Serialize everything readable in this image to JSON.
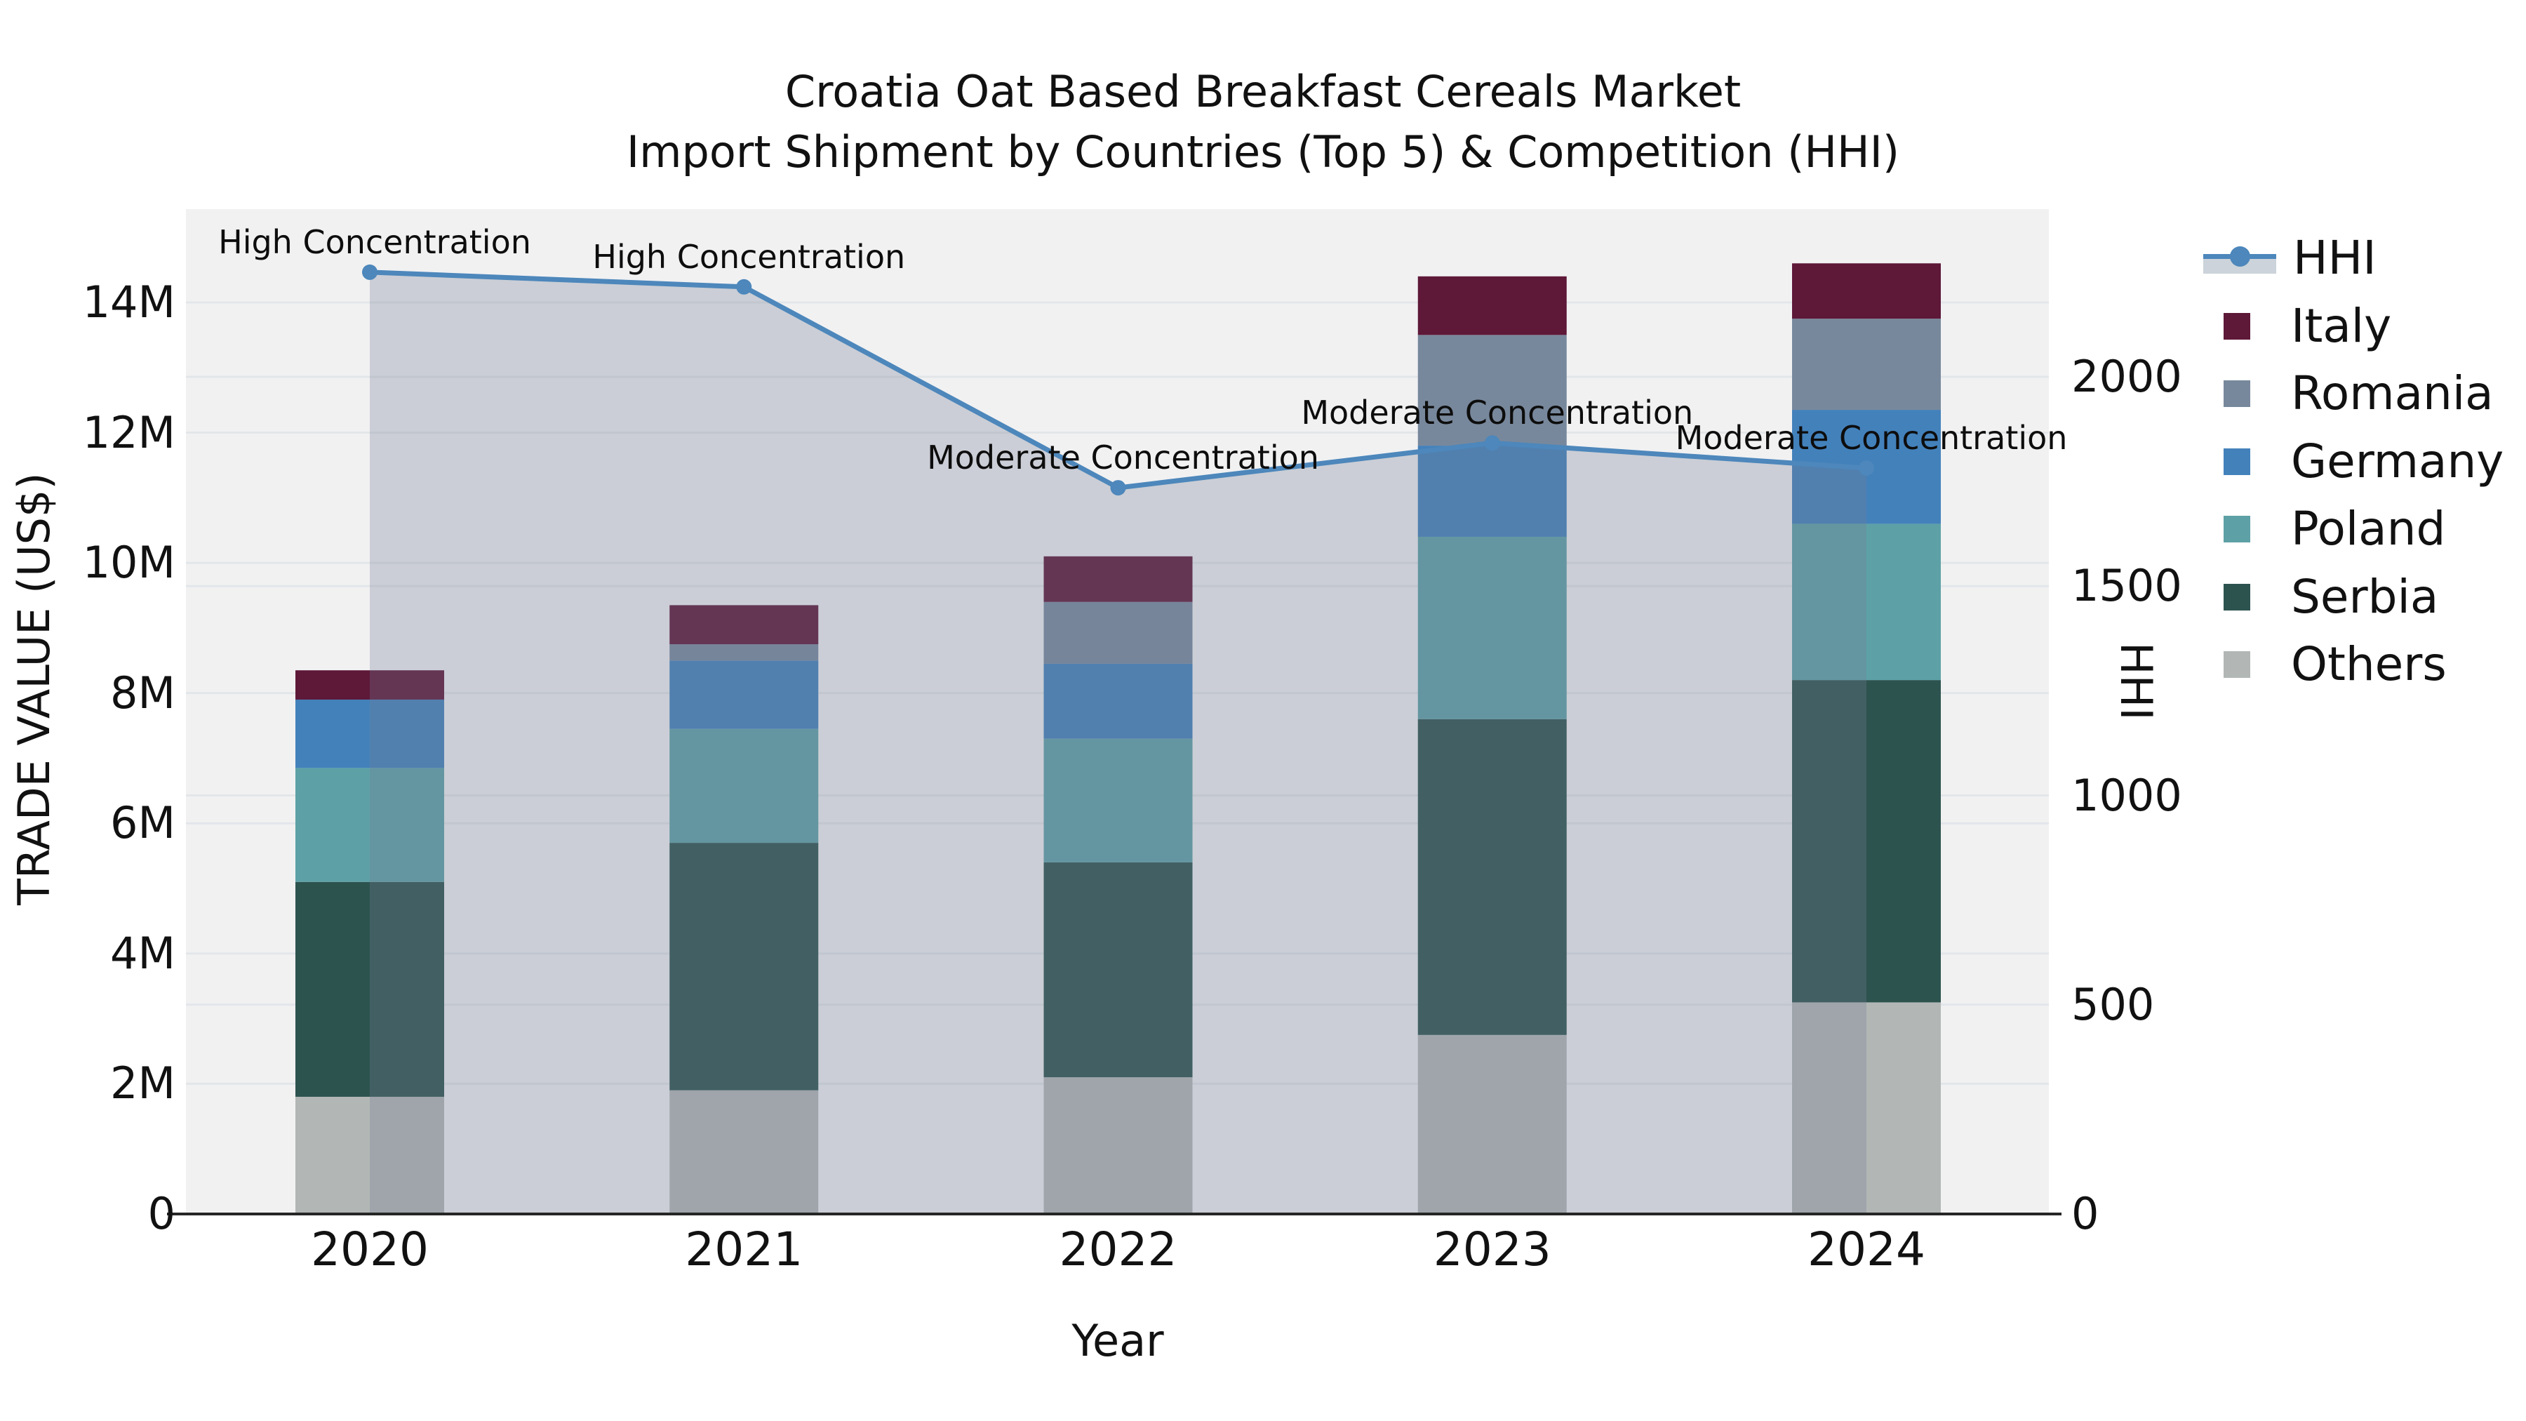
{
  "title": {
    "line1": "Croatia Oat Based Breakfast Cereals Market",
    "line2": "Import Shipment by Countries (Top 5) & Competition (HHI)"
  },
  "axes": {
    "x_label": "Year",
    "y_left_label": "TRADE VALUE (US$)",
    "y_right_label": "HHI",
    "y_left_tick_values": [
      0,
      2,
      4,
      6,
      8,
      10,
      12,
      14
    ],
    "y_left_tick_labels": [
      "0",
      "2M",
      "4M",
      "6M",
      "8M",
      "10M",
      "12M",
      "14M"
    ],
    "y_right_tick_values": [
      0,
      500,
      1000,
      1500,
      2000
    ],
    "y_right_tick_labels": [
      "0",
      "500",
      "1000",
      "1500",
      "2000"
    ]
  },
  "colors": {
    "plot_bg": "#f1f1f2",
    "grid": "#e3e6e9",
    "axis_line": "#262626",
    "text": "#111111",
    "hhi_line": "#4d87bb",
    "area_fill": "rgba(115,127,148,0.30)",
    "legend_band": "#ccd3da",
    "italy": "#5e1838",
    "romania": "#78889c",
    "germany": "#4381bb",
    "poland": "#5da1a6",
    "serbia": "#2d534f",
    "others": "#b2b7b5"
  },
  "legend": {
    "entries": [
      "HHI",
      "Italy",
      "Romania",
      "Germany",
      "Poland",
      "Serbia",
      "Others"
    ]
  },
  "chart_data": {
    "type": "bar",
    "subtype": "stacked-bar-with-line",
    "title": "Croatia Oat Based Breakfast Cereals Market — Import Shipment by Countries (Top 5) & Competition (HHI)",
    "categories": [
      "2020",
      "2021",
      "2022",
      "2023",
      "2024"
    ],
    "xlabel": "Year",
    "ylabel_left": "TRADE VALUE (US$)",
    "ylabel_right": "HHI",
    "y_left_unit": "M US$",
    "y_left_range": [
      0,
      15.43
    ],
    "y_right_range": [
      0,
      2400
    ],
    "grid": true,
    "legend_position": "right",
    "series": [
      {
        "name": "Others",
        "color_key": "others",
        "values": [
          1.8,
          1.9,
          2.1,
          2.75,
          3.25
        ]
      },
      {
        "name": "Serbia",
        "color_key": "serbia",
        "values": [
          3.3,
          3.8,
          3.3,
          4.85,
          4.95
        ]
      },
      {
        "name": "Poland",
        "color_key": "poland",
        "values": [
          1.75,
          1.75,
          1.9,
          2.8,
          2.4
        ]
      },
      {
        "name": "Germany",
        "color_key": "germany",
        "values": [
          1.05,
          1.05,
          1.15,
          1.4,
          1.75
        ]
      },
      {
        "name": "Romania",
        "color_key": "romania",
        "values": [
          0.0,
          0.25,
          0.95,
          1.7,
          1.4
        ]
      },
      {
        "name": "Italy",
        "color_key": "italy",
        "values": [
          0.45,
          0.6,
          0.7,
          0.9,
          0.85
        ]
      }
    ],
    "bar_totals": [
      8.35,
      9.35,
      10.1,
      14.4,
      14.6
    ],
    "line_series": {
      "name": "HHI",
      "values": [
        2250,
        2215,
        1735,
        1842,
        1782
      ]
    },
    "annotations": [
      {
        "category": "2020",
        "label": "High Concentration"
      },
      {
        "category": "2021",
        "label": "High Concentration"
      },
      {
        "category": "2022",
        "label": "Moderate Concentration"
      },
      {
        "category": "2023",
        "label": "Moderate Concentration"
      },
      {
        "category": "2024",
        "label": "Moderate Concentration"
      }
    ]
  }
}
